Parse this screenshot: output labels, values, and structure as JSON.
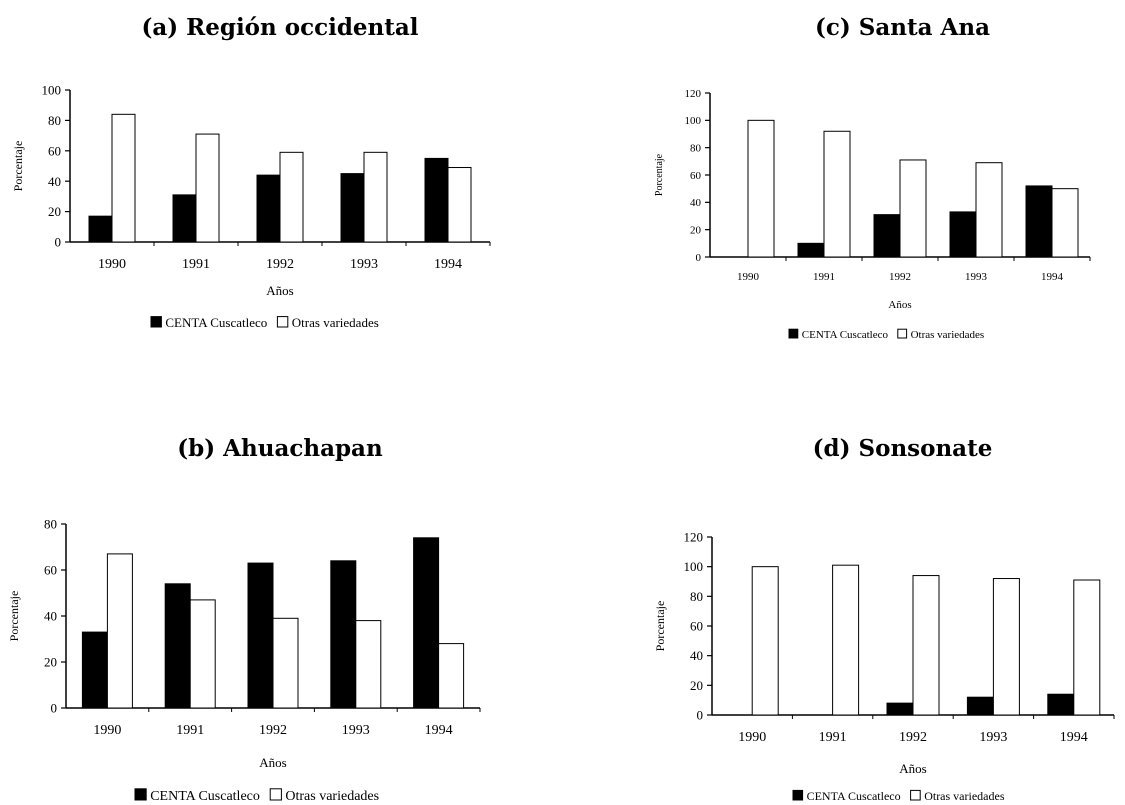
{
  "chart_data": [
    {
      "type": "bar",
      "title": "(a) Región occidental",
      "xlabel": "Años",
      "ylabel": "Porcentaje",
      "categories": [
        "1990",
        "1991",
        "1992",
        "1993",
        "1994"
      ],
      "ylim": [
        0,
        100
      ],
      "yticks": [
        0,
        20,
        40,
        60,
        80,
        100
      ],
      "series": [
        {
          "name": "CENTA Cuscatleco",
          "color": "#000000",
          "values": [
            17,
            31,
            44,
            45,
            55
          ]
        },
        {
          "name": "Otras variedades",
          "color": "#ffffff",
          "values": [
            84,
            71,
            59,
            59,
            49
          ]
        }
      ],
      "legend_position": "bottom"
    },
    {
      "type": "bar",
      "title": "(b) Ahuachapan",
      "xlabel": "Años",
      "ylabel": "Porcentaje",
      "categories": [
        "1990",
        "1991",
        "1992",
        "1993",
        "1994"
      ],
      "ylim": [
        0,
        80
      ],
      "yticks": [
        0,
        20,
        40,
        60,
        80
      ],
      "series": [
        {
          "name": "CENTA Cuscatleco",
          "color": "#000000",
          "values": [
            33,
            54,
            63,
            64,
            74
          ]
        },
        {
          "name": "Otras variedades",
          "color": "#ffffff",
          "values": [
            67,
            47,
            39,
            38,
            28
          ]
        }
      ],
      "legend_position": "bottom"
    },
    {
      "type": "bar",
      "title": "(c) Santa Ana",
      "xlabel": "Años",
      "ylabel": "Porcentaje",
      "categories": [
        "1990",
        "1991",
        "1992",
        "1993",
        "1994"
      ],
      "ylim": [
        0,
        120
      ],
      "yticks": [
        0,
        20,
        40,
        60,
        80,
        100,
        120
      ],
      "series": [
        {
          "name": "CENTA Cuscatleco",
          "color": "#000000",
          "values": [
            0,
            10,
            31,
            33,
            52
          ]
        },
        {
          "name": "Otras variedades",
          "color": "#ffffff",
          "values": [
            100,
            92,
            71,
            69,
            50
          ]
        }
      ],
      "legend_position": "bottom"
    },
    {
      "type": "bar",
      "title": "(d) Sonsonate",
      "xlabel": "Años",
      "ylabel": "Porcentaje",
      "categories": [
        "1990",
        "1991",
        "1992",
        "1993",
        "1994"
      ],
      "ylim": [
        0,
        120
      ],
      "yticks": [
        0,
        20,
        40,
        60,
        80,
        100,
        120
      ],
      "series": [
        {
          "name": "CENTA Cuscatleco",
          "color": "#000000",
          "values": [
            0,
            0,
            8,
            12,
            14
          ]
        },
        {
          "name": "Otras variedades",
          "color": "#ffffff",
          "values": [
            100,
            101,
            94,
            92,
            91
          ]
        }
      ],
      "legend_position": "bottom"
    }
  ]
}
